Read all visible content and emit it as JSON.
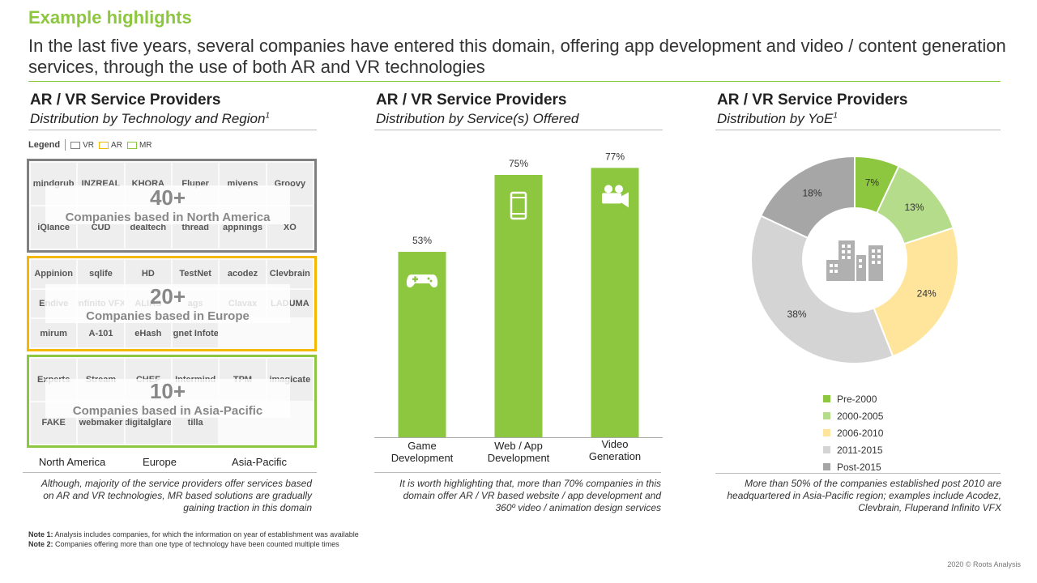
{
  "header": {
    "label": "Example highlights",
    "subtitle": "In the last five years, several companies have entered this domain, offering app development and video / content generation services, through the use of both AR and VR technologies"
  },
  "colors": {
    "accent_green": "#8dc63f",
    "north_america_border": "#808080",
    "europe_border": "#f5b800",
    "asia_pacific_border": "#8dc63f",
    "bar_fill": "#8dc63f"
  },
  "panels": {
    "region": {
      "title": "AR / VR Service Providers",
      "subtitle": "Distribution by Technology and Region",
      "subtitle_sup": "1",
      "legend": {
        "title": "Legend",
        "items": [
          "VR",
          "AR",
          "MR"
        ]
      },
      "regions": [
        {
          "count": "40+",
          "label": "Companies based in North America",
          "axis_label": "North America",
          "logos": [
            "mindgrub",
            "INZREAL",
            "KHORA",
            "Fluper",
            "miyens",
            "Groovy",
            "iQlance",
            "CUD",
            "dealtech",
            "thread",
            "appnings",
            "XO"
          ]
        },
        {
          "count": "20+",
          "label": "Companies based in Europe",
          "axis_label": "Europe",
          "logos": [
            "Appinion",
            "sqlife",
            "HD",
            "TestNet",
            "acodez",
            "Clevbrain",
            "Endive",
            "Infinito VFX",
            "ALIAS",
            "ags",
            "Clavax",
            "LADUMA",
            "mirum",
            "A-101",
            "eHash",
            "Cygnet Infotech"
          ]
        },
        {
          "count": "10+",
          "label": "Companies based in Asia-Pacific",
          "axis_label": "Asia-Pacific",
          "logos": [
            "Experts",
            "Stream",
            "CHEF",
            "Intermind",
            "TPM",
            "imagicate",
            "FAKE",
            "webmaker",
            "digitalglare",
            "tilla"
          ]
        }
      ],
      "note": "Although, majority of the service providers offer services based on AR and VR technologies, MR based solutions are gradually gaining traction in this domain"
    },
    "service": {
      "title": "AR / VR Service Providers",
      "subtitle": "Distribution by Service(s) Offered",
      "note": "It is worth highlighting that, more than 70% companies in this domain offer AR / VR based website / app development and 360º video / animation design services"
    },
    "yoe": {
      "title": "AR / VR Service Providers",
      "subtitle": "Distribution by YoE",
      "subtitle_sup": "1",
      "note": "More than 50% of the companies established post 2010 are headquartered in Asia-Pacific region; examples include Acodez, Clevbrain, Fluperand Infinito VFX"
    }
  },
  "chart_data": [
    {
      "type": "bar",
      "categories": [
        "Game Development",
        "Web / App Development",
        "Video Generation"
      ],
      "values": [
        53,
        75,
        77
      ],
      "value_labels": [
        "53%",
        "75%",
        "77%"
      ],
      "icons": [
        "gamepad-icon",
        "smartphone-icon",
        "video-camera-icon"
      ],
      "ylim": [
        0,
        100
      ],
      "grid": false
    },
    {
      "type": "pie",
      "donut": true,
      "categories": [
        "Pre-2000",
        "2000-2005",
        "2006-2010",
        "2011-2015",
        "Post-2015"
      ],
      "values": [
        7,
        13,
        24,
        38,
        18
      ],
      "value_labels": [
        "7%",
        "13%",
        "24%",
        "38%",
        "18%"
      ],
      "colors": [
        "#8dc63f",
        "#b5dc8a",
        "#ffe49b",
        "#d4d4d4",
        "#a6a6a6"
      ],
      "center_icon": "buildings-icon",
      "legend_position": "bottom"
    }
  ],
  "footnotes": {
    "note1_label": "Note 1:",
    "note1_text": "Analysis includes companies, for which the information on year of establishment was available",
    "note2_label": "Note 2:",
    "note2_text": "Companies offering more than one type of technology have been counted multiple times",
    "copyright": "2020 © Roots Analysis"
  }
}
